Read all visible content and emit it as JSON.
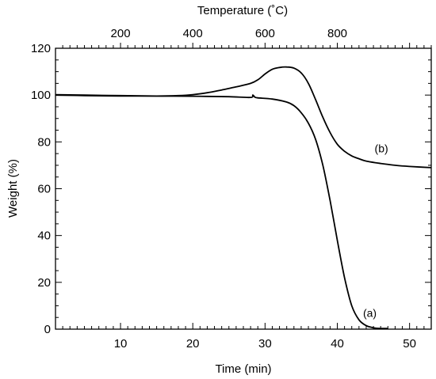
{
  "chart_data": {
    "type": "line",
    "title": "",
    "xlabel": "Time (min)",
    "ylabel": "Weight (%)",
    "x2label": "Temperature (˚C)",
    "xlim": [
      1,
      53
    ],
    "ylim": [
      0,
      120
    ],
    "x2lim": [
      20,
      1060
    ],
    "xticks": [
      10,
      20,
      30,
      40,
      50
    ],
    "yticks": [
      0,
      20,
      40,
      60,
      80,
      100,
      120
    ],
    "x2ticks": [
      200,
      400,
      600,
      800
    ],
    "grid": false,
    "legend": "none",
    "series": [
      {
        "name": "(a)",
        "x": [
          1,
          5,
          10,
          15,
          20,
          25,
          28,
          28.3,
          28.6,
          29,
          31,
          33,
          34,
          35,
          36,
          37,
          38,
          39,
          40,
          41,
          42,
          43,
          44,
          45,
          46,
          47
        ],
        "y": [
          100.2,
          100,
          99.8,
          99.6,
          99.5,
          99.3,
          99,
          100,
          99.1,
          98.8,
          98.3,
          97,
          95.5,
          92.5,
          88,
          81,
          70,
          55,
          38,
          22,
          10,
          4,
          1.5,
          0.6,
          0.3,
          0.3
        ]
      },
      {
        "name": "(b)",
        "x": [
          1,
          5,
          10,
          15,
          18,
          20,
          22,
          24,
          26,
          28,
          29,
          30,
          31,
          32,
          33,
          34,
          35,
          36,
          37,
          38,
          39,
          40,
          41,
          42,
          43,
          44,
          46,
          48,
          50,
          53
        ],
        "y": [
          100,
          99.8,
          99.6,
          99.6,
          99.8,
          100.2,
          101,
          102.2,
          103.5,
          105,
          106.5,
          109,
          111,
          111.8,
          112,
          111.5,
          109.5,
          105,
          98,
          90.5,
          84,
          79,
          76,
          74,
          72.8,
          71.8,
          70.8,
          70,
          69.5,
          69
        ]
      }
    ]
  }
}
